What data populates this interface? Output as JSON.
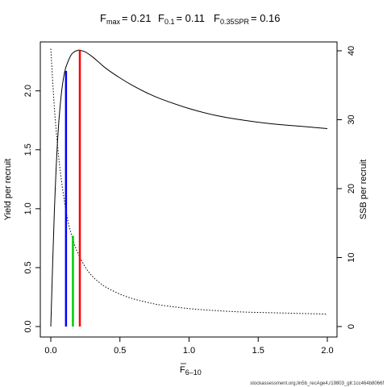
{
  "chart_data": {
    "type": "line",
    "title_parts": [
      {
        "main": "F",
        "sub": "max",
        "rest": "= 0.21"
      },
      {
        "main": "F",
        "sub": "0.1",
        "rest": "= 0.11"
      },
      {
        "main": "F",
        "sub": "0.35SPR",
        "rest": "= 0.16"
      }
    ],
    "xlabel": {
      "main": "F",
      "sub": "6–10"
    },
    "ylabel_left": "Yield per recruit",
    "ylabel_right": "SSB per recruit",
    "xlim": [
      0,
      2.0
    ],
    "ylim_left": [
      0,
      2.34
    ],
    "ylim_right": [
      0,
      40
    ],
    "x_ticks": [
      0,
      0.5,
      1.0,
      1.5,
      2.0
    ],
    "x_tick_labels": [
      "0.0",
      "0.5",
      "1.0",
      "1.5",
      "2.0"
    ],
    "y_left_ticks": [
      0,
      0.5,
      1.0,
      1.5,
      2.0
    ],
    "y_left_tick_labels": [
      "0.0",
      "0.5",
      "1.0",
      "1.5",
      "2.0"
    ],
    "y_right_ticks": [
      0,
      10,
      20,
      30,
      40
    ],
    "y_right_tick_labels": [
      "0",
      "10",
      "20",
      "30",
      "40"
    ],
    "grid": false,
    "series": [
      {
        "role": "yield-per-recruit",
        "axis": "left",
        "style": "solid",
        "color": "#000000",
        "x": [
          0,
          0.025,
          0.05,
          0.075,
          0.1,
          0.125,
          0.15,
          0.175,
          0.2,
          0.21,
          0.25,
          0.3,
          0.35,
          0.4,
          0.5,
          0.6,
          0.7,
          0.8,
          1.0,
          1.2,
          1.4,
          1.6,
          1.8,
          2.0
        ],
        "values": [
          0,
          0.95,
          1.6,
          1.96,
          2.16,
          2.25,
          2.31,
          2.335,
          2.345,
          2.345,
          2.33,
          2.29,
          2.24,
          2.19,
          2.11,
          2.04,
          1.98,
          1.93,
          1.85,
          1.79,
          1.75,
          1.72,
          1.7,
          1.68
        ]
      },
      {
        "role": "ssb-per-recruit",
        "axis": "right",
        "style": "dotted",
        "color": "#000000",
        "x": [
          0,
          0.025,
          0.05,
          0.075,
          0.1,
          0.125,
          0.15,
          0.175,
          0.2,
          0.25,
          0.3,
          0.35,
          0.4,
          0.5,
          0.6,
          0.7,
          0.8,
          1.0,
          1.2,
          1.4,
          1.6,
          1.8,
          2.0
        ],
        "values": [
          40.3,
          32.0,
          26.0,
          21.5,
          18.0,
          15.2,
          13.3,
          11.7,
          10.5,
          8.6,
          7.3,
          6.4,
          5.7,
          4.7,
          4.0,
          3.5,
          3.1,
          2.6,
          2.3,
          2.1,
          2.0,
          1.9,
          1.8
        ]
      }
    ],
    "reference_lines": [
      {
        "role": "F0.1",
        "x": 0.11,
        "y_left": 2.17,
        "color": "#0000ff"
      },
      {
        "role": "F0.35SPR",
        "x": 0.16,
        "y_left": 0.77,
        "color": "#00cc00"
      },
      {
        "role": "Fmax",
        "x": 0.21,
        "y_left": 2.345,
        "color": "#ff0000"
      }
    ]
  },
  "footer": {
    "source": "stockassessment.org,lin5b_recAge4,r19803_git:1cc464b8066f"
  }
}
